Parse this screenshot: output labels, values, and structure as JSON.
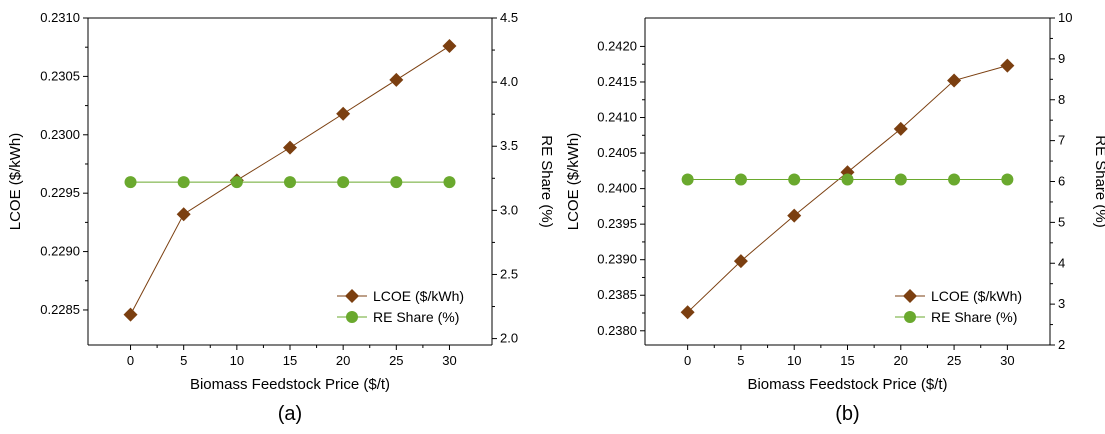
{
  "colors": {
    "lcoe": "#7b3f10",
    "re": "#6aa92e"
  },
  "chart_data": [
    {
      "type": "line",
      "panel_label": "(a)",
      "xlabel": "Biomass Feedstock Price ($/t)",
      "ylabel": "LCOE ($/kWh)",
      "y2label": "RE Share (%)",
      "x": [
        0,
        5,
        10,
        15,
        20,
        25,
        30
      ],
      "xlim": [
        -4,
        34
      ],
      "ylim": [
        0.2282,
        0.231
      ],
      "y2lim": [
        1.95,
        4.5
      ],
      "yticks": [
        "0.2285",
        "0.2290",
        "0.2295",
        "0.2300",
        "0.2305",
        "0.2310"
      ],
      "y2ticks": [
        "2.0",
        "2.5",
        "3.0",
        "3.5",
        "4.0",
        "4.5"
      ],
      "legend_position": "lower-right",
      "series": [
        {
          "name": "LCOE ($/kWh)",
          "axis": "left",
          "marker": "diamond",
          "values": [
            0.22846,
            0.22932,
            0.22961,
            0.22989,
            0.23018,
            0.23047,
            0.23076
          ]
        },
        {
          "name": "RE Share (%)",
          "axis": "right",
          "marker": "circle",
          "values": [
            3.22,
            3.22,
            3.22,
            3.22,
            3.22,
            3.22,
            3.22
          ]
        }
      ]
    },
    {
      "type": "line",
      "panel_label": "(b)",
      "xlabel": "Biomass Feedstock Price ($/t)",
      "ylabel": "LCOE ($/kWh)",
      "y2label": "RE Share (%)",
      "x": [
        0,
        5,
        10,
        15,
        20,
        25,
        30
      ],
      "xlim": [
        -4,
        34
      ],
      "ylim": [
        0.2378,
        0.2424
      ],
      "y2lim": [
        2,
        10
      ],
      "yticks": [
        "0.2380",
        "0.2385",
        "0.2390",
        "0.2395",
        "0.2400",
        "0.2405",
        "0.2410",
        "0.2415",
        "0.2420"
      ],
      "y2ticks": [
        "2",
        "3",
        "4",
        "5",
        "6",
        "7",
        "8",
        "9",
        "10"
      ],
      "legend_position": "lower-right",
      "series": [
        {
          "name": "LCOE ($/kWh)",
          "axis": "left",
          "marker": "diamond",
          "values": [
            0.23826,
            0.23898,
            0.23962,
            0.24023,
            0.24084,
            0.24152,
            0.24173
          ]
        },
        {
          "name": "RE Share (%)",
          "axis": "right",
          "marker": "circle",
          "values": [
            6.05,
            6.05,
            6.05,
            6.05,
            6.05,
            6.05,
            6.05
          ]
        }
      ]
    }
  ]
}
